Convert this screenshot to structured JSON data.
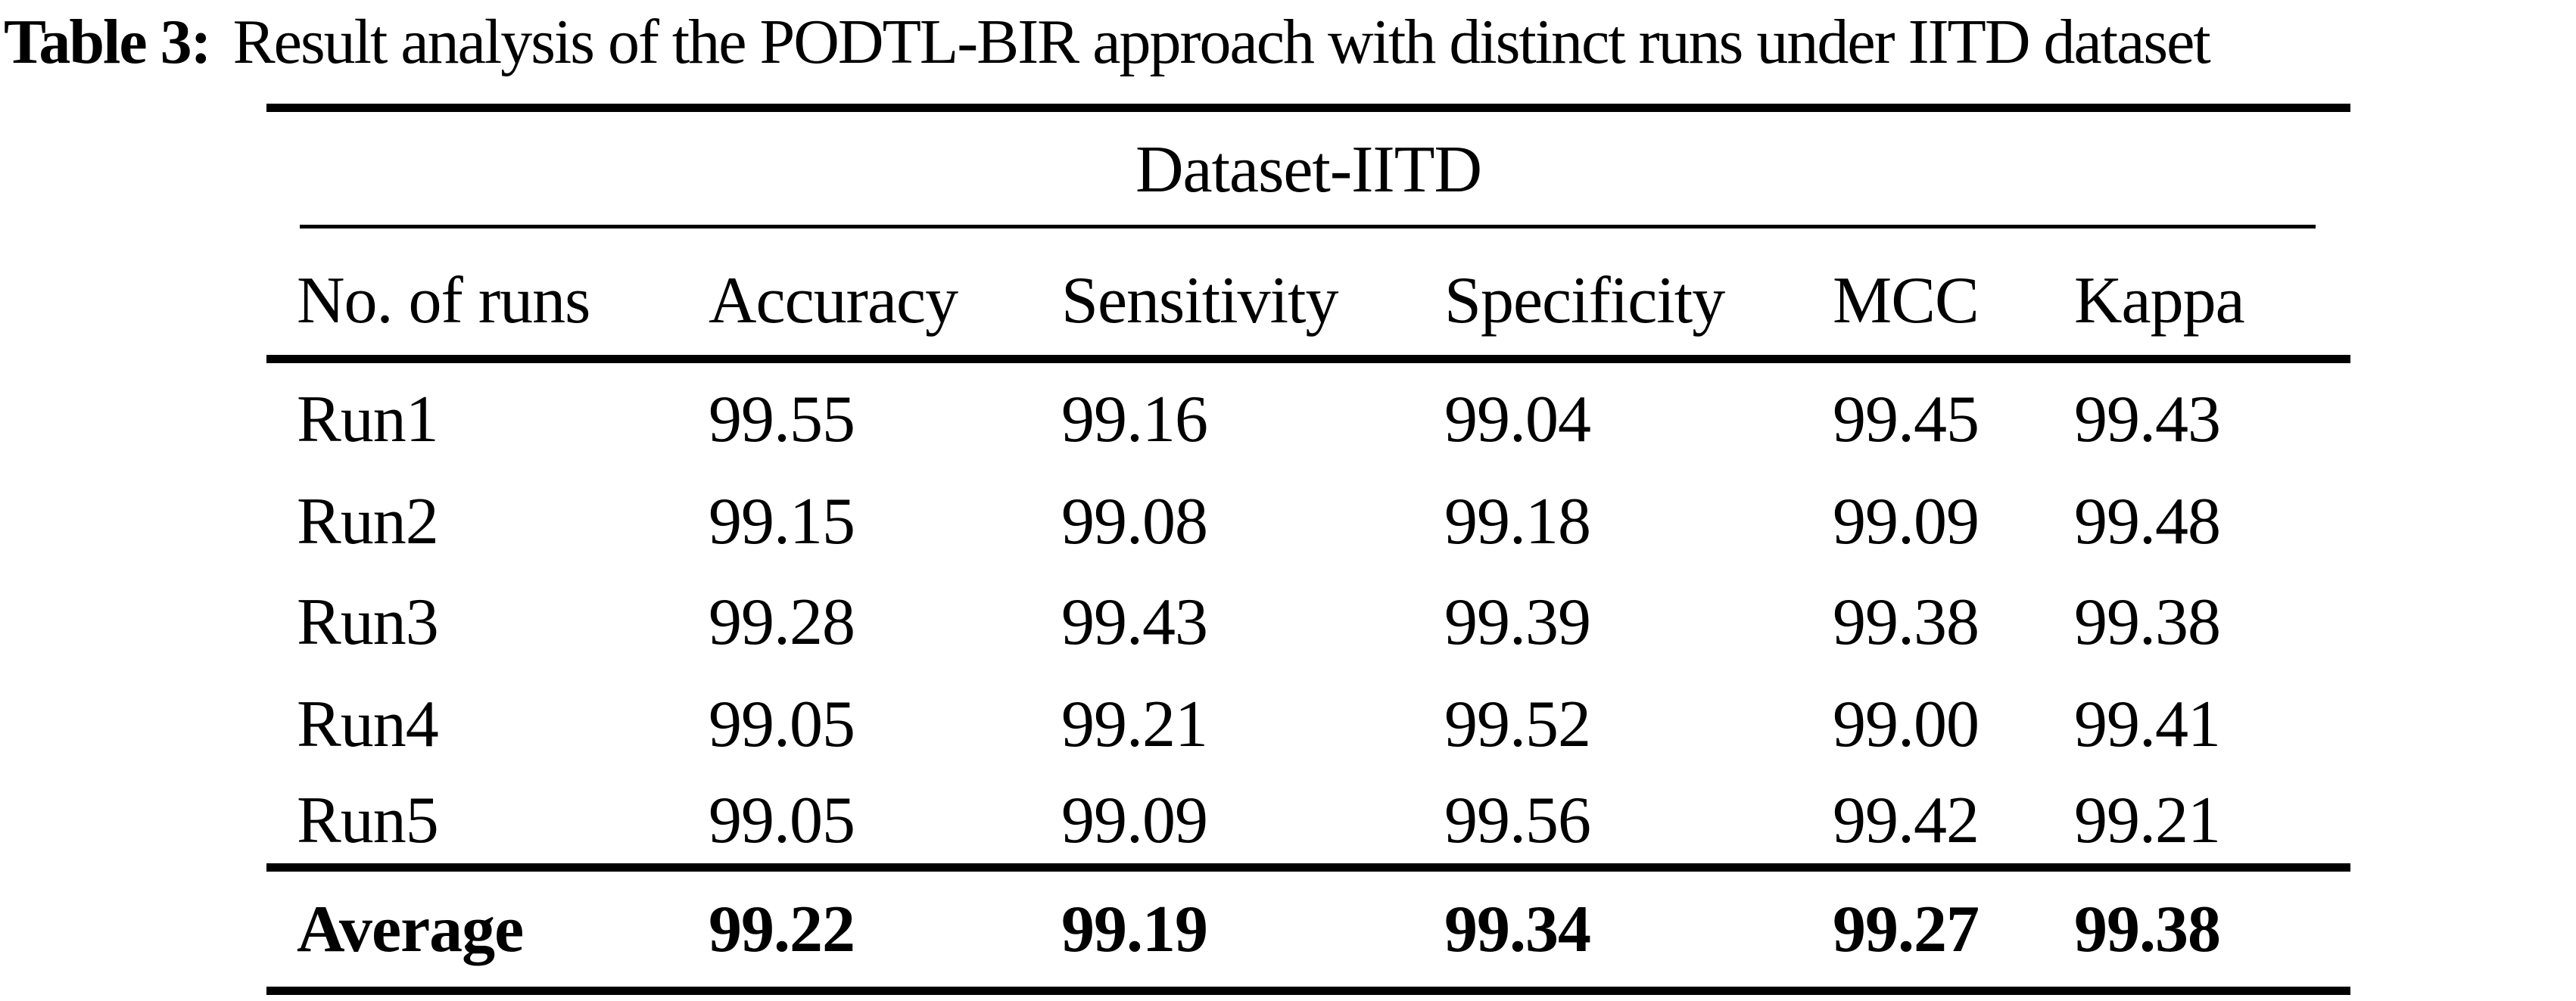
{
  "caption": {
    "label": "Table 3:",
    "text": "Result analysis of the PODTL-BIR approach with distinct runs under IITD dataset"
  },
  "table": {
    "group_header": "Dataset-IITD",
    "columns": [
      "No. of runs",
      "Accuracy",
      "Sensitivity",
      "Specificity",
      "MCC",
      "Kappa"
    ],
    "rows": [
      {
        "label": "Run1",
        "values": [
          "99.55",
          "99.16",
          "99.04",
          "99.45",
          "99.43"
        ]
      },
      {
        "label": "Run2",
        "values": [
          "99.15",
          "99.08",
          "99.18",
          "99.09",
          "99.48"
        ]
      },
      {
        "label": "Run3",
        "values": [
          "99.28",
          "99.43",
          "99.39",
          "99.38",
          "99.38"
        ]
      },
      {
        "label": "Run4",
        "values": [
          "99.05",
          "99.21",
          "99.52",
          "99.00",
          "99.41"
        ]
      },
      {
        "label": "Run5",
        "values": [
          "99.05",
          "99.09",
          "99.56",
          "99.42",
          "99.21"
        ]
      }
    ],
    "average_row": {
      "label": "Average",
      "values": [
        "99.22",
        "99.19",
        "99.34",
        "99.27",
        "99.38"
      ]
    }
  },
  "chart_data": {
    "type": "table",
    "title": "Table 3: Result analysis of the PODTL-BIR approach with distinct runs under IITD dataset",
    "group_header": "Dataset-IITD",
    "columns": [
      "No. of runs",
      "Accuracy",
      "Sensitivity",
      "Specificity",
      "MCC",
      "Kappa"
    ],
    "rows": [
      [
        "Run1",
        99.55,
        99.16,
        99.04,
        99.45,
        99.43
      ],
      [
        "Run2",
        99.15,
        99.08,
        99.18,
        99.09,
        99.48
      ],
      [
        "Run3",
        99.28,
        99.43,
        99.39,
        99.38,
        99.38
      ],
      [
        "Run4",
        99.05,
        99.21,
        99.52,
        99.0,
        99.41
      ],
      [
        "Run5",
        99.05,
        99.09,
        99.56,
        99.42,
        99.21
      ],
      [
        "Average",
        99.22,
        99.19,
        99.34,
        99.27,
        99.38
      ]
    ]
  }
}
